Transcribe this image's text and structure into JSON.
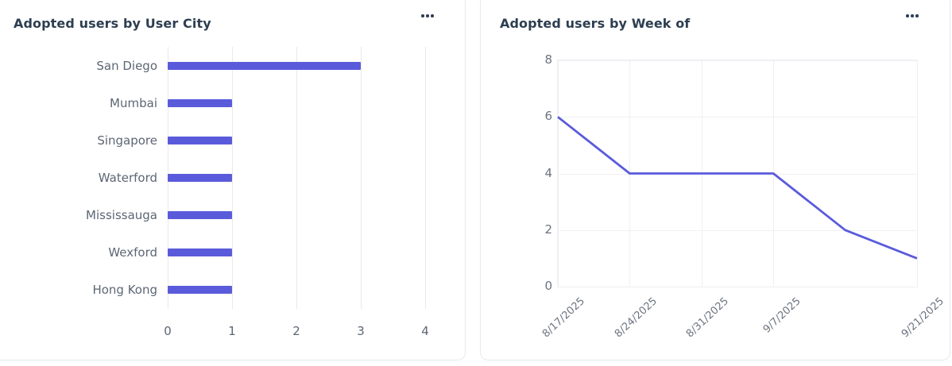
{
  "colors": {
    "accent": "#5a5bdb",
    "title_text": "#2d3e50",
    "axis_text": "#5c6675",
    "grid_left": "#e9e9ee",
    "grid_right": "#f0f0f4",
    "card_border": "#e9e9f0",
    "menu_dots": "#2f3e52"
  },
  "cards": [
    {
      "title": "Adopted users by User City",
      "menu_icon": "ellipsis-icon"
    },
    {
      "title": "Adopted users by Week of",
      "menu_icon": "ellipsis-icon"
    }
  ],
  "chart_data": [
    {
      "type": "bar",
      "orientation": "horizontal",
      "title": "Adopted users by User City",
      "categories": [
        "San Diego",
        "Mumbai",
        "Singapore",
        "Waterford",
        "Mississauga",
        "Wexford",
        "Hong Kong"
      ],
      "values": [
        3,
        1,
        1,
        1,
        1,
        1,
        1
      ],
      "xlabel": "",
      "ylabel": "",
      "xlim": [
        0,
        4
      ],
      "x_ticks": [
        0,
        1,
        2,
        3,
        4
      ],
      "grid": "vertical",
      "legend": "none",
      "bar_color": "#5a5bdb"
    },
    {
      "type": "line",
      "title": "Adopted users by Week of",
      "x_tick_labels": [
        "8/17/2025",
        "8/24/2025",
        "8/31/2025",
        "9/7/2025",
        "",
        "9/21/2025"
      ],
      "values": [
        6,
        4,
        4,
        4,
        2,
        1
      ],
      "xlabel": "",
      "ylabel": "",
      "ylim": [
        0,
        8
      ],
      "y_ticks": [
        8,
        6,
        4,
        2,
        0
      ],
      "grid": "both",
      "legend": "none",
      "line_color": "#5a5bdb"
    }
  ]
}
